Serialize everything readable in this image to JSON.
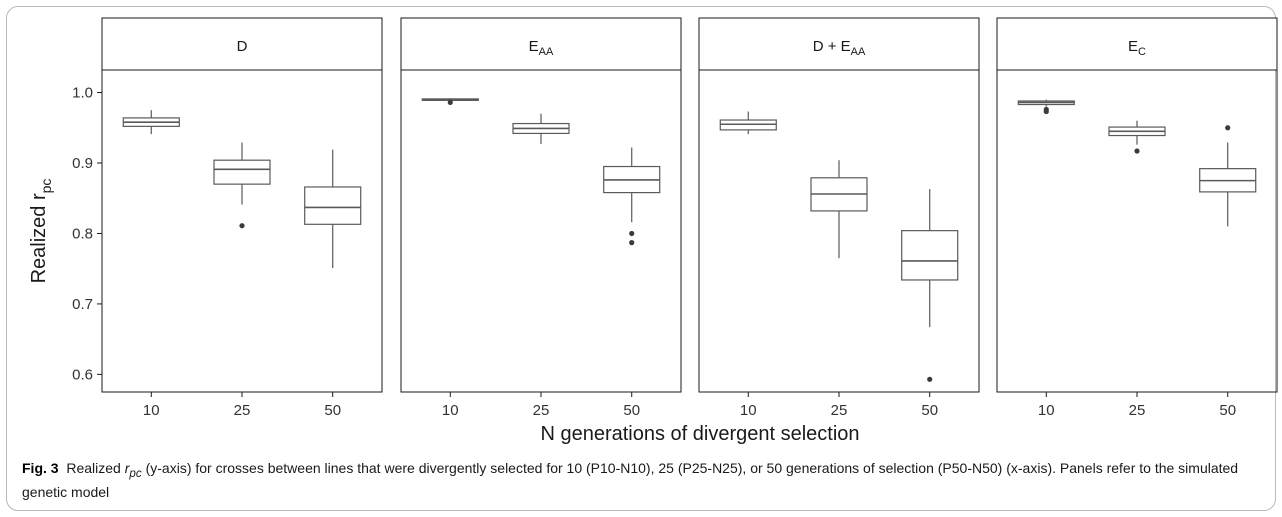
{
  "chart_data": {
    "type": "boxplot",
    "facets": [
      "D",
      "E_AA",
      "D+E_AA",
      "E_C"
    ],
    "facet_labels": [
      {
        "main": "D",
        "sub": ""
      },
      {
        "main": "E",
        "sub": "AA"
      },
      {
        "main": "D + E",
        "sub": "AA"
      },
      {
        "main": "E",
        "sub": "C"
      }
    ],
    "categories": [
      "10",
      "25",
      "50"
    ],
    "xlabel": "N generations of divergent selection",
    "ylabel": {
      "main": "Realized r",
      "sub": "pc"
    },
    "ylim": [
      0.575,
      1.032
    ],
    "yticks": [
      "0.6",
      "0.7",
      "0.8",
      "0.9",
      "1.0"
    ],
    "ytick_values": [
      0.6,
      0.7,
      0.8,
      0.9,
      1.0
    ],
    "grid": false,
    "colors": {
      "box_stroke": "#5a5a5a",
      "strip_fill": "#ffffff",
      "axis": "#1a1a1a",
      "outlier": "#3a3a3a"
    },
    "panels": [
      {
        "facet": "D",
        "boxes": [
          {
            "x": "10",
            "whisker_low": 0.941,
            "q1": 0.952,
            "median": 0.958,
            "q3": 0.964,
            "whisker_high": 0.975,
            "outliers": []
          },
          {
            "x": "25",
            "whisker_low": 0.841,
            "q1": 0.87,
            "median": 0.891,
            "q3": 0.904,
            "whisker_high": 0.929,
            "outliers": [
              0.811
            ]
          },
          {
            "x": "50",
            "whisker_low": 0.751,
            "q1": 0.813,
            "median": 0.837,
            "q3": 0.866,
            "whisker_high": 0.919,
            "outliers": []
          }
        ]
      },
      {
        "facet": "E_AA",
        "boxes": [
          {
            "x": "10",
            "whisker_low": 0.988,
            "q1": 0.989,
            "median": 0.99,
            "q3": 0.991,
            "whisker_high": 0.992,
            "outliers": [
              0.986
            ]
          },
          {
            "x": "25",
            "whisker_low": 0.927,
            "q1": 0.942,
            "median": 0.949,
            "q3": 0.956,
            "whisker_high": 0.97,
            "outliers": []
          },
          {
            "x": "50",
            "whisker_low": 0.816,
            "q1": 0.858,
            "median": 0.876,
            "q3": 0.895,
            "whisker_high": 0.922,
            "outliers": [
              0.8,
              0.787
            ]
          }
        ]
      },
      {
        "facet": "D+E_AA",
        "boxes": [
          {
            "x": "10",
            "whisker_low": 0.941,
            "q1": 0.947,
            "median": 0.955,
            "q3": 0.961,
            "whisker_high": 0.973,
            "outliers": []
          },
          {
            "x": "25",
            "whisker_low": 0.765,
            "q1": 0.832,
            "median": 0.856,
            "q3": 0.879,
            "whisker_high": 0.904,
            "outliers": []
          },
          {
            "x": "50",
            "whisker_low": 0.667,
            "q1": 0.734,
            "median": 0.761,
            "q3": 0.804,
            "whisker_high": 0.863,
            "outliers": [
              0.593
            ]
          }
        ]
      },
      {
        "facet": "E_C",
        "boxes": [
          {
            "x": "10",
            "whisker_low": 0.98,
            "q1": 0.983,
            "median": 0.986,
            "q3": 0.988,
            "whisker_high": 0.99,
            "outliers": [
              0.976,
              0.973
            ]
          },
          {
            "x": "25",
            "whisker_low": 0.926,
            "q1": 0.939,
            "median": 0.945,
            "q3": 0.951,
            "whisker_high": 0.96,
            "outliers": [
              0.917
            ]
          },
          {
            "x": "50",
            "whisker_low": 0.81,
            "q1": 0.859,
            "median": 0.875,
            "q3": 0.892,
            "whisker_high": 0.929,
            "outliers": [
              0.95
            ]
          }
        ]
      }
    ]
  },
  "caption": {
    "fig_label": "Fig. 3",
    "text_before": "Realized ",
    "italic_var": "r",
    "italic_sub": "pc",
    "text_after": " (y-axis) for crosses between lines that were divergently selected for 10 (P10-N10), 25 (P25-N25), or 50 generations of selection (P50-N50) (x-axis). Panels refer to the simulated genetic model"
  }
}
